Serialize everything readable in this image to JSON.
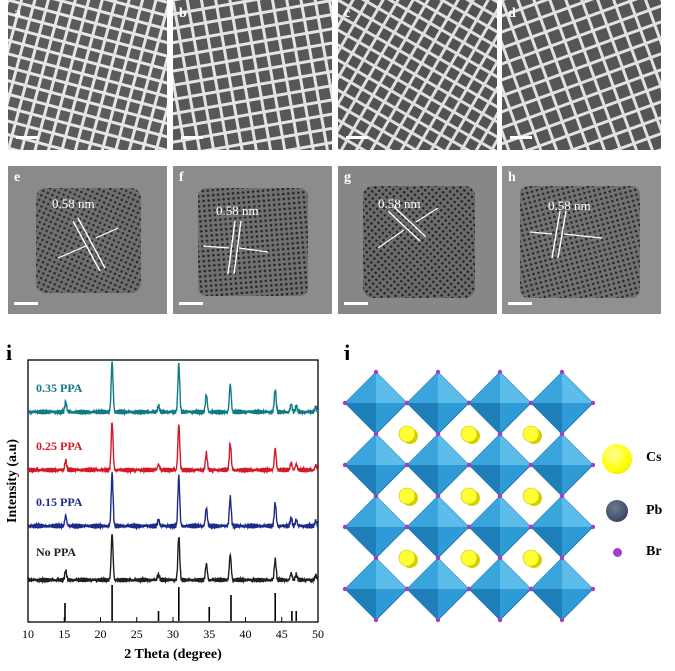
{
  "panels": {
    "a": "a",
    "b": "b",
    "c": "c",
    "d": "d",
    "e": "e",
    "f": "f",
    "g": "g",
    "h": "h",
    "i": "i",
    "j": "j"
  },
  "lattice_label": "0.58 nm",
  "chart_data": {
    "type": "line",
    "xlabel": "2 Theta (degree)",
    "ylabel": "Intensity (a.u)",
    "xlim": [
      10,
      50
    ],
    "xticks": [
      "10",
      "15",
      "20",
      "25",
      "30",
      "35",
      "40",
      "45",
      "50"
    ],
    "series": [
      {
        "name": "0.35 PPA",
        "color": "#127a85"
      },
      {
        "name": "0.25 PPA",
        "color": "#d21a2a"
      },
      {
        "name": "0.15 PPA",
        "color": "#1e2b8a"
      },
      {
        "name": "No PPA",
        "color": "#231f20"
      }
    ],
    "peaks": [
      {
        "x": 15.2,
        "h": 0.2
      },
      {
        "x": 21.6,
        "h": 1.0
      },
      {
        "x": 28.0,
        "h": 0.12
      },
      {
        "x": 30.8,
        "h": 0.95
      },
      {
        "x": 34.6,
        "h": 0.35
      },
      {
        "x": 37.9,
        "h": 0.55
      },
      {
        "x": 44.1,
        "h": 0.45
      },
      {
        "x": 46.3,
        "h": 0.15
      },
      {
        "x": 47.0,
        "h": 0.12
      },
      {
        "x": 49.7,
        "h": 0.1
      }
    ],
    "reference_lines": [
      15.1,
      21.6,
      28.0,
      30.8,
      35.0,
      38.0,
      44.1,
      46.4,
      47.0
    ]
  },
  "legend_j": [
    "Cs",
    "Pb",
    "Br"
  ],
  "colors": {
    "cs": "#ffff33",
    "pb": "#3b4a64",
    "br": "#a040c8",
    "octa": "#2e9bd6"
  }
}
